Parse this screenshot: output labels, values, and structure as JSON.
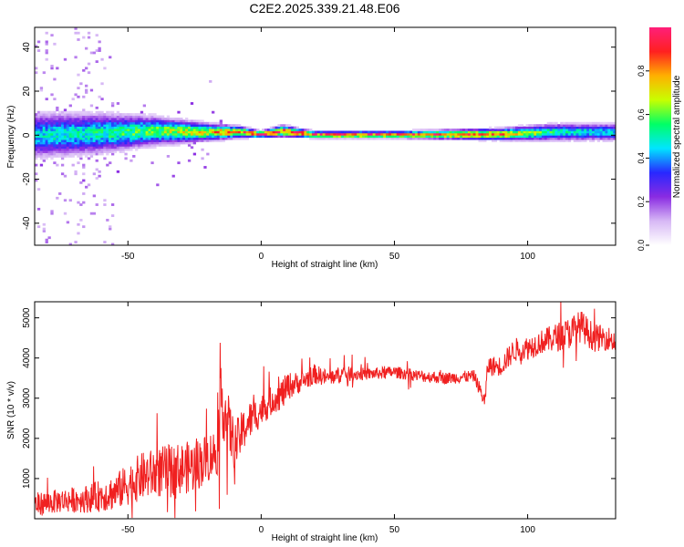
{
  "title": "C2E2.2025.339.21.48.E06",
  "chart_data": [
    {
      "type": "heatmap",
      "xlabel": "Height of straight line (km)",
      "ylabel": "Frequency (Hz)",
      "xlim": [
        -85,
        133
      ],
      "ylim": [
        -50,
        49
      ],
      "xticks": [
        -50,
        0,
        50,
        100
      ],
      "yticks": [
        -40,
        -20,
        0,
        20,
        40
      ],
      "colorbar": {
        "label": "Normalized spectral amplitude",
        "range": [
          0,
          1
        ],
        "ticks": [
          "0.0",
          "0.2",
          "0.4",
          "0.6",
          "0.8"
        ],
        "colors": [
          "#ffffff",
          "#d7b8f5",
          "#8a2be2",
          "#2828ff",
          "#00e5ff",
          "#00ff66",
          "#c8ff00",
          "#ffb000",
          "#ff2020",
          "#ff1f7a"
        ]
      },
      "description_points": {
        "x": [
          -85,
          -60,
          -40,
          -20,
          -8,
          0,
          8,
          20,
          50,
          90,
          110,
          133
        ],
        "center_freq_hz": [
          0,
          1,
          2,
          1.5,
          1.5,
          0.5,
          2,
          0.3,
          0.3,
          0.5,
          1.5,
          1.5
        ],
        "peak_amplitude": [
          0.5,
          0.55,
          0.65,
          0.8,
          0.9,
          0.95,
          0.95,
          0.95,
          0.95,
          0.9,
          0.55,
          0.5
        ],
        "band_halfwidth_hz": [
          8,
          7,
          5,
          3,
          2,
          1.2,
          2,
          1.2,
          1.2,
          2,
          3,
          3
        ]
      }
    },
    {
      "type": "line",
      "xlabel": "Height of straight line (km)",
      "ylabel": "SNR (10 * v/v)",
      "xlim": [
        -85,
        133
      ],
      "ylim": [
        0,
        5400
      ],
      "xticks": [
        -50,
        0,
        50,
        100
      ],
      "yticks": [
        1000,
        2000,
        3000,
        4000,
        5000
      ],
      "series": [
        {
          "color": "#f02020",
          "x": [
            -85,
            -75,
            -65,
            -55,
            -45,
            -35,
            -25,
            -16,
            -15,
            -10,
            -5,
            0,
            5,
            8,
            10,
            15,
            20,
            25,
            30,
            40,
            50,
            60,
            70,
            80,
            84,
            85,
            90,
            95,
            100,
            105,
            110,
            115,
            120,
            125,
            130,
            133
          ],
          "y": [
            350,
            450,
            500,
            650,
            1050,
            1200,
            1300,
            1700,
            3000,
            1800,
            2400,
            2700,
            3000,
            3100,
            3300,
            3400,
            3600,
            3500,
            3600,
            3600,
            3650,
            3550,
            3500,
            3550,
            2900,
            3800,
            3800,
            4200,
            4250,
            4400,
            4500,
            4600,
            4800,
            4500,
            4500,
            4400
          ],
          "noise_amplitude": [
            300,
            300,
            350,
            450,
            600,
            650,
            650,
            600,
            900,
            600,
            500,
            400,
            350,
            400,
            350,
            250,
            250,
            200,
            200,
            150,
            150,
            150,
            150,
            150,
            200,
            250,
            250,
            300,
            300,
            300,
            350,
            400,
            400,
            350,
            300,
            300
          ]
        }
      ]
    }
  ]
}
